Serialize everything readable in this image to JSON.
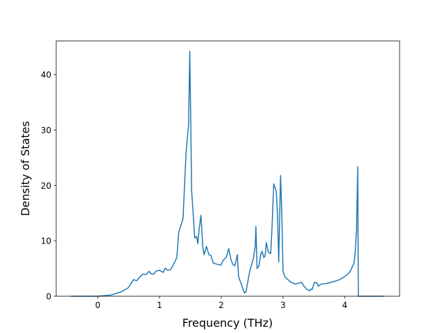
{
  "chart_data": {
    "type": "line",
    "x_label": "Frequency (THz)",
    "y_label": "Density of States",
    "color": "#1f77b4",
    "xlim": [
      -0.674,
      4.888
    ],
    "ylim": [
      0,
      46.1
    ],
    "xticks": [
      0,
      1,
      2,
      3,
      4
    ],
    "yticks": [
      0,
      10,
      20,
      30,
      40
    ],
    "x": [
      -0.44,
      0,
      0.21,
      0.38,
      0.49,
      0.55,
      0.58,
      0.63,
      0.69,
      0.73,
      0.78,
      0.83,
      0.87,
      0.91,
      0.94,
      1.0,
      1.06,
      1.09,
      1.13,
      1.18,
      1.22,
      1.28,
      1.31,
      1.38,
      1.43,
      1.47,
      1.49,
      1.52,
      1.55,
      1.57,
      1.6,
      1.62,
      1.64,
      1.67,
      1.7,
      1.72,
      1.76,
      1.8,
      1.83,
      1.87,
      1.92,
      1.99,
      2.03,
      2.08,
      2.12,
      2.16,
      2.19,
      2.22,
      2.26,
      2.28,
      2.33,
      2.36,
      2.38,
      2.4,
      2.46,
      2.52,
      2.55,
      2.56,
      2.58,
      2.61,
      2.64,
      2.66,
      2.69,
      2.71,
      2.73,
      2.76,
      2.8,
      2.82,
      2.85,
      2.89,
      2.91,
      2.93,
      2.96,
      2.98,
      3.0,
      3.03,
      3.08,
      3.13,
      3.2,
      3.27,
      3.3,
      3.34,
      3.39,
      3.43,
      3.45,
      3.47,
      3.51,
      3.55,
      3.57,
      3.62,
      3.7,
      3.81,
      3.92,
      4.03,
      4.09,
      4.15,
      4.17,
      4.19,
      4.21,
      4.22,
      4.26,
      4.63
    ],
    "values": [
      0,
      0,
      0.2,
      0.8,
      1.5,
      2.5,
      3.0,
      2.8,
      3.6,
      4.0,
      3.9,
      4.5,
      4.0,
      4.0,
      4.5,
      4.7,
      4.3,
      5.1,
      4.7,
      4.8,
      5.6,
      7.0,
      11.5,
      14,
      26,
      31,
      44.2,
      19,
      14,
      10.5,
      10.8,
      9.5,
      12,
      14.6,
      9,
      7.5,
      9,
      7.5,
      7.4,
      6,
      5.8,
      5.6,
      6.5,
      7,
      8.6,
      6.5,
      5.7,
      5.5,
      7.5,
      3.5,
      2,
      1,
      0.6,
      0.8,
      4.5,
      6.8,
      9,
      12.6,
      5,
      5.5,
      7.6,
      8.1,
      7,
      7.3,
      9.7,
      8,
      7.7,
      12,
      20.3,
      19,
      15,
      6.2,
      21.8,
      15,
      4.5,
      3.5,
      3,
      2.5,
      2.2,
      2.4,
      2.5,
      1.8,
      1.2,
      1.0,
      1.3,
      1.2,
      2.5,
      2.4,
      1.8,
      2.2,
      2.3,
      2.6,
      3.0,
      3.8,
      4.5,
      6,
      8,
      12,
      23.4,
      0,
      0,
      0
    ]
  }
}
